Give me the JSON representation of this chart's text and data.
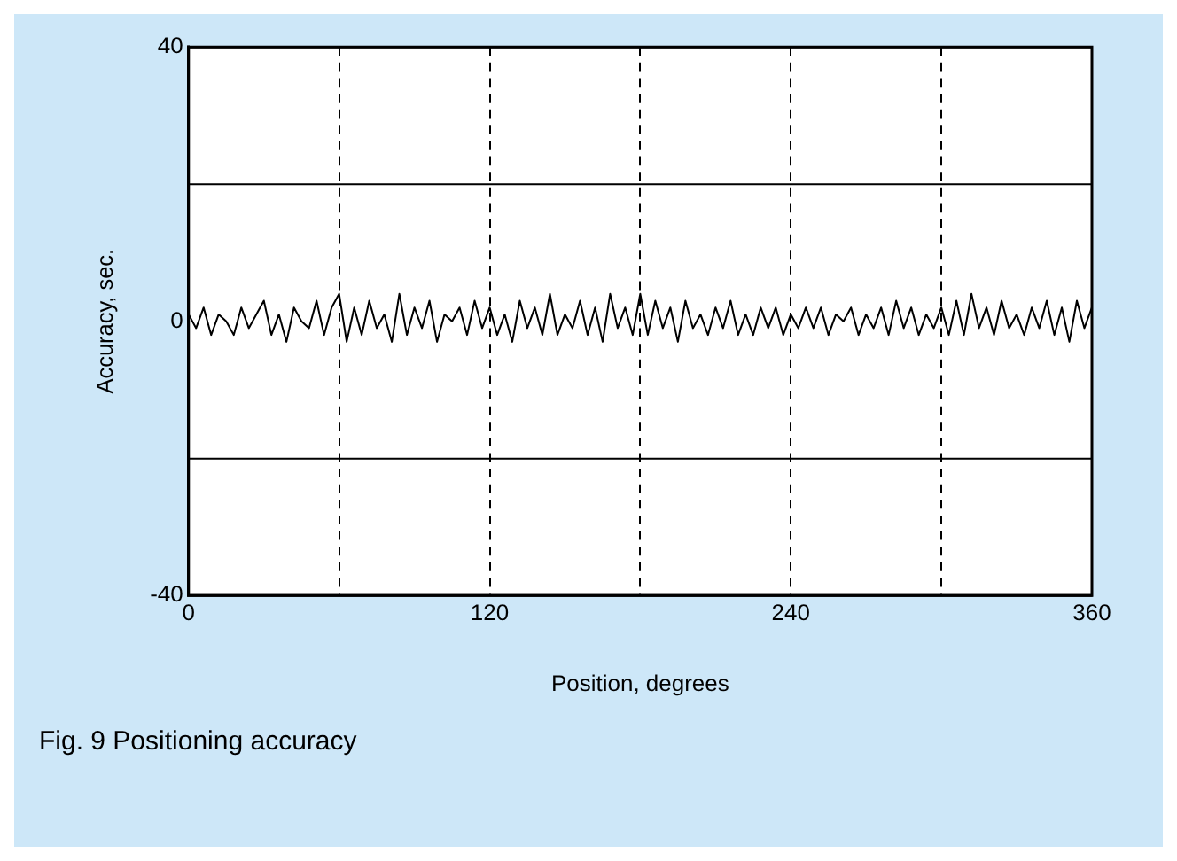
{
  "chart_data": {
    "type": "line",
    "xlabel": "Position, degrees",
    "ylabel": "Accuracy, sec.",
    "annotations": [
      "Fig. 9  Positioning accuracy"
    ],
    "x": [
      0,
      3,
      6,
      9,
      12,
      15,
      18,
      21,
      24,
      27,
      30,
      33,
      36,
      39,
      42,
      45,
      48,
      51,
      54,
      57,
      60,
      63,
      66,
      69,
      72,
      75,
      78,
      81,
      84,
      87,
      90,
      93,
      96,
      99,
      102,
      105,
      108,
      111,
      114,
      117,
      120,
      123,
      126,
      129,
      132,
      135,
      138,
      141,
      144,
      147,
      150,
      153,
      156,
      159,
      162,
      165,
      168,
      171,
      174,
      177,
      180,
      183,
      186,
      189,
      192,
      195,
      198,
      201,
      204,
      207,
      210,
      213,
      216,
      219,
      222,
      225,
      228,
      231,
      234,
      237,
      240,
      243,
      246,
      249,
      252,
      255,
      258,
      261,
      264,
      267,
      270,
      273,
      276,
      279,
      282,
      285,
      288,
      291,
      294,
      297,
      300,
      303,
      306,
      309,
      312,
      315,
      318,
      321,
      324,
      327,
      330,
      333,
      336,
      339,
      342,
      345,
      348,
      351,
      354,
      357,
      360
    ],
    "series": [
      {
        "color": "#000000",
        "values": [
          1,
          -1,
          2,
          -2,
          1,
          0,
          -2,
          2,
          -1,
          1,
          3,
          -2,
          1,
          -3,
          2,
          0,
          -1,
          3,
          -2,
          2,
          4,
          -3,
          2,
          -2,
          3,
          -1,
          1,
          -3,
          4,
          -2,
          2,
          -1,
          3,
          -3,
          1,
          0,
          2,
          -2,
          3,
          -1,
          2,
          -2,
          1,
          -3,
          3,
          -1,
          2,
          -2,
          4,
          -2,
          1,
          -1,
          3,
          -2,
          2,
          -3,
          4,
          -1,
          2,
          -2,
          4,
          -2,
          3,
          -1,
          2,
          -3,
          3,
          -1,
          1,
          -2,
          2,
          -1,
          3,
          -2,
          1,
          -2,
          2,
          -1,
          2,
          -2,
          1,
          -1,
          2,
          -1,
          2,
          -2,
          1,
          0,
          2,
          -2,
          1,
          -1,
          2,
          -2,
          3,
          -1,
          2,
          -2,
          1,
          -1,
          2,
          -2,
          3,
          -2,
          4,
          -1,
          2,
          -2,
          3,
          -1,
          1,
          -2,
          2,
          -1,
          3,
          -2,
          2,
          -3,
          3,
          -1,
          2
        ]
      }
    ],
    "xlim": [
      0,
      360
    ],
    "xticks": [
      0,
      {
        "value": 60,
        "label": null
      },
      120,
      {
        "value": 180,
        "label": null
      },
      240,
      {
        "value": 300,
        "label": null
      },
      360
    ],
    "ylim": [
      -40,
      40
    ],
    "yticks": [
      -40,
      {
        "value": -20,
        "label": null
      },
      0,
      {
        "value": 20,
        "label": null
      },
      40
    ],
    "grid": true,
    "marker": "none",
    "line_style": "solid"
  }
}
